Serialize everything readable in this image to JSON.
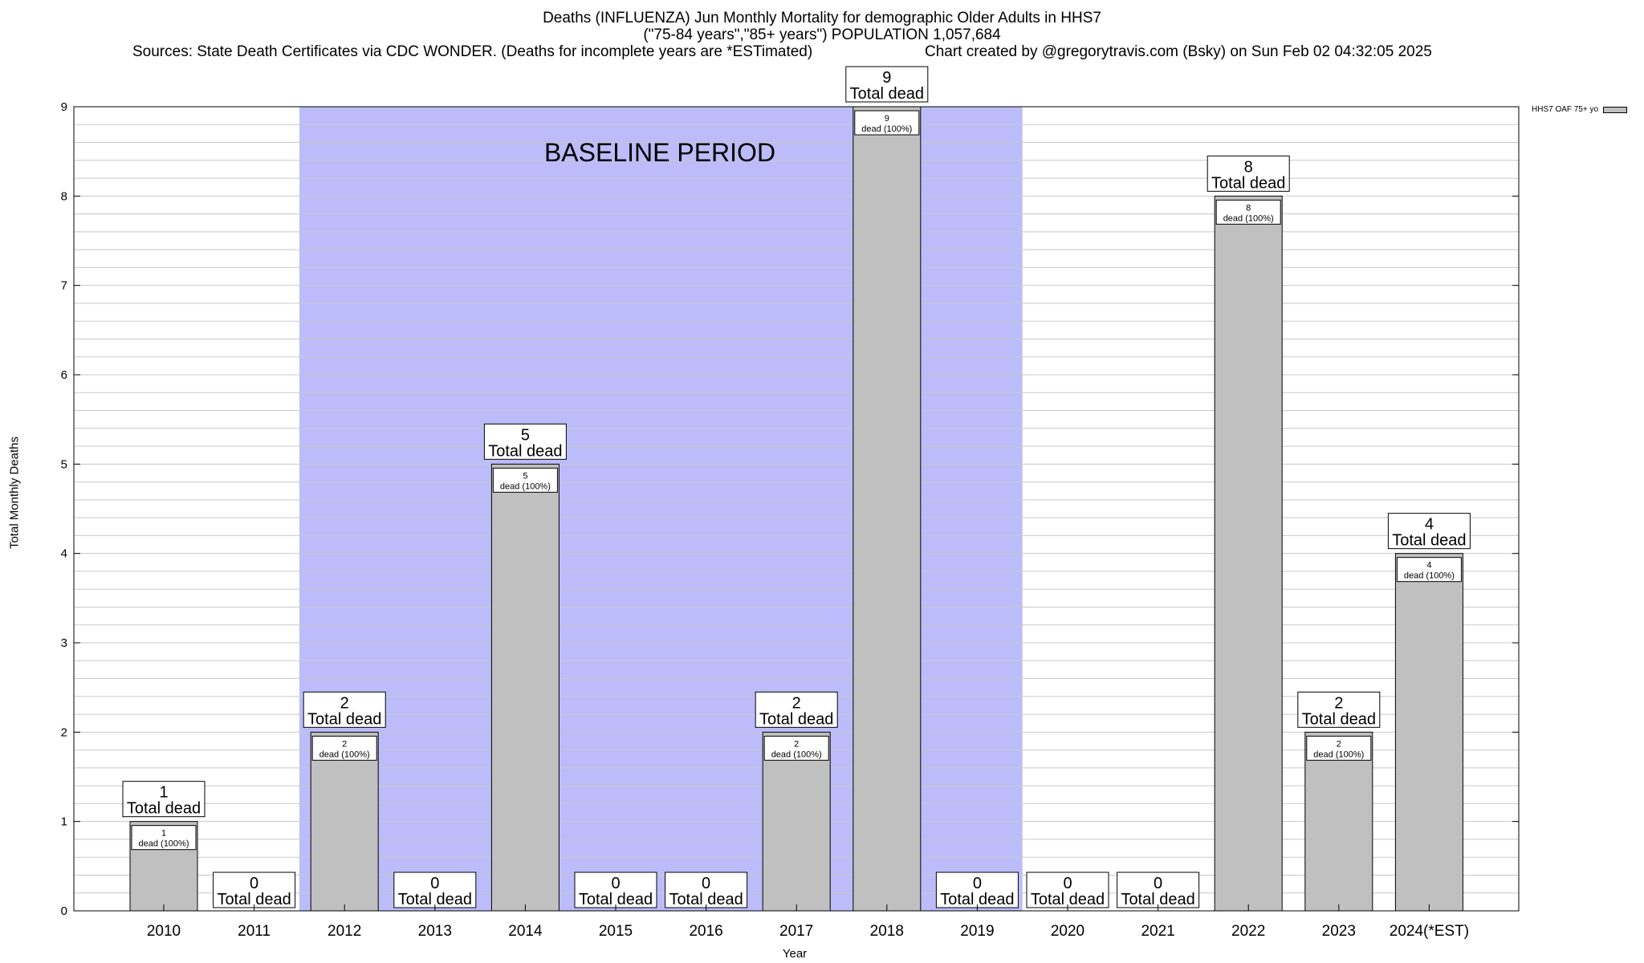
{
  "header": {
    "title": "Deaths (INFLUENZA) Jun Monthly Mortality for demographic Older Adults in HHS7",
    "subtitle": "(\"75-84 years\",\"85+ years\") POPULATION 1,057,684",
    "sources": "Sources: State Death Certificates via CDC WONDER. (Deaths for incomplete years are *ESTimated)",
    "credit": "Chart created by @gregorytravis.com (Bsky) on Sun Feb 02 04:32:05 2025"
  },
  "legend": {
    "label": "HHS7 OAF 75+ yo"
  },
  "annotation": {
    "baseline_label": "BASELINE PERIOD"
  },
  "colors": {
    "bar": "#c0c0c0",
    "baseline": "#bcbcfa",
    "grid": "#c8c8c8"
  },
  "chart_data": {
    "type": "bar",
    "xlabel": "Year",
    "ylabel": "Total Monthly Deaths",
    "ylim": [
      0,
      9
    ],
    "yticks": [
      0,
      1,
      2,
      3,
      4,
      5,
      6,
      7,
      8,
      9
    ],
    "grid": true,
    "legend_position": "top-right",
    "categories": [
      "2010",
      "2011",
      "2012",
      "2013",
      "2014",
      "2015",
      "2016",
      "2017",
      "2018",
      "2019",
      "2020",
      "2021",
      "2022",
      "2023",
      "2024(*EST)"
    ],
    "series": [
      {
        "name": "HHS7 OAF 75+ yo",
        "values": [
          1,
          0,
          2,
          0,
          5,
          0,
          0,
          2,
          9,
          0,
          0,
          0,
          8,
          2,
          4
        ]
      }
    ],
    "total_label": "Total dead",
    "inner_label_suffix": "dead (100%)",
    "baseline_period": {
      "from": "2012",
      "to": "2019"
    }
  }
}
